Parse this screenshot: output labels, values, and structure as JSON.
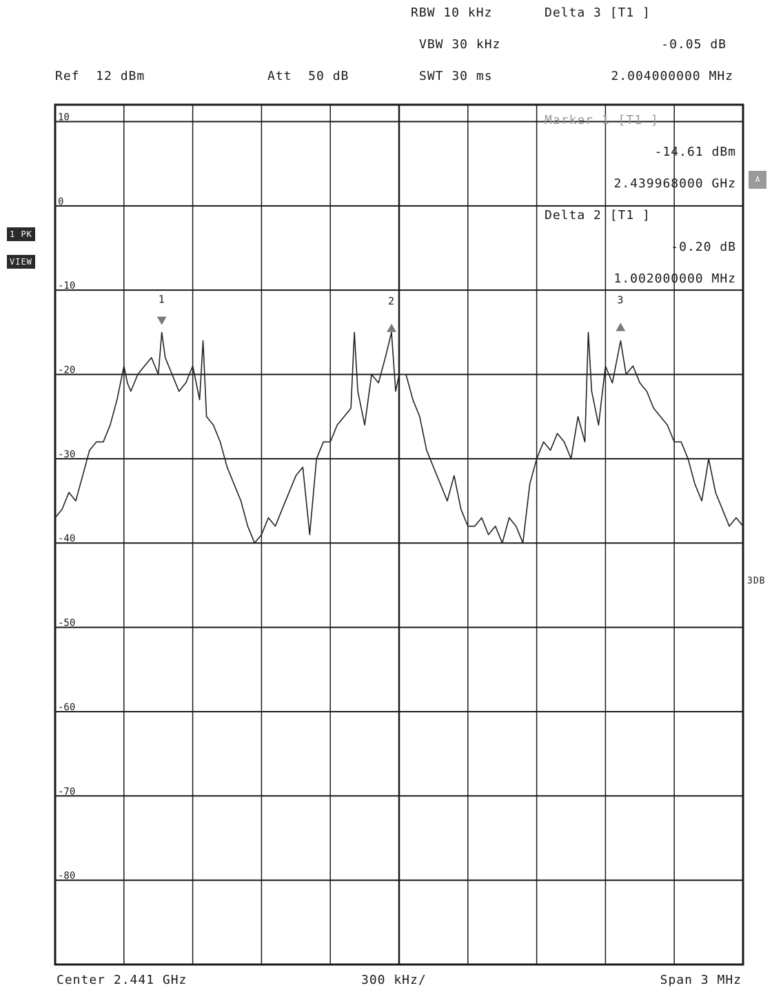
{
  "header": {
    "rbw": "RBW 10 kHz",
    "vbw": "VBW 30 kHz",
    "swt": "SWT 30 ms",
    "ref": "Ref  12 dBm",
    "att": "Att  50 dB",
    "delta3_title": "Delta 3 [T1 ]",
    "delta3_value": "-0.05 dB",
    "delta3_freq": "2.004000000 MHz"
  },
  "marker_info": {
    "marker1_title": "Marker 1 [T1 ]",
    "marker1_value": "-14.61 dBm",
    "marker1_freq": "2.439968000 GHz",
    "delta2_title": "Delta 2 [T1 ]",
    "delta2_value": "-0.20 dB",
    "delta2_freq": "1.002000000 MHz"
  },
  "side": {
    "trace_label": "1 PK",
    "trace_mode": "VIEW",
    "a_label": "A",
    "right_label": "3DB"
  },
  "footer": {
    "center": "Center 2.441 GHz",
    "per_div": "300 kHz/",
    "span": "Span 3 MHz"
  },
  "colors": {
    "trace": "#222222",
    "grid": "#1a1a1a",
    "marker": "#7a7a7a",
    "background": "#ffffff"
  },
  "chart_data": {
    "type": "line",
    "xlabel": "",
    "ylabel": "",
    "ylim": [
      -90,
      10
    ],
    "xlim": [
      0,
      10
    ],
    "y_ticks": [
      10,
      0,
      -10,
      -20,
      -30,
      -40,
      -50,
      -60,
      -70,
      -80
    ],
    "y_tick_labels": [
      "10",
      "0",
      "-10",
      "-20",
      "-30",
      "-40",
      "-50",
      "-60",
      "-70",
      "-80"
    ],
    "grid": true,
    "markers": [
      {
        "label": "1",
        "x": 1.55,
        "y": -14.61,
        "direction": "down"
      },
      {
        "label": "2",
        "x": 4.89,
        "y": -14.8,
        "direction": "up"
      },
      {
        "label": "3",
        "x": 8.22,
        "y": -14.7,
        "direction": "up"
      }
    ],
    "series": [
      {
        "x": [
          0,
          0.1,
          0.2,
          0.3,
          0.4,
          0.5,
          0.6,
          0.7,
          0.8,
          0.9,
          1.0,
          1.05,
          1.1,
          1.2,
          1.3,
          1.4,
          1.5,
          1.55,
          1.6,
          1.7,
          1.8,
          1.9,
          2.0,
          2.1,
          2.15,
          2.2,
          2.3,
          2.4,
          2.5,
          2.6,
          2.7,
          2.8,
          2.9,
          3.0,
          3.1,
          3.2,
          3.3,
          3.4,
          3.5,
          3.6,
          3.7,
          3.8,
          3.9,
          4.0,
          4.1,
          4.2,
          4.3,
          4.35,
          4.4,
          4.5,
          4.6,
          4.7,
          4.8,
          4.89,
          4.95,
          5.0,
          5.1,
          5.2,
          5.3,
          5.4,
          5.5,
          5.6,
          5.7,
          5.8,
          5.9,
          6.0,
          6.1,
          6.2,
          6.3,
          6.4,
          6.5,
          6.6,
          6.7,
          6.8,
          6.9,
          7.0,
          7.1,
          7.2,
          7.3,
          7.4,
          7.5,
          7.6,
          7.7,
          7.75,
          7.8,
          7.9,
          8.0,
          8.1,
          8.22,
          8.3,
          8.4,
          8.5,
          8.6,
          8.7,
          8.8,
          8.9,
          9.0,
          9.1,
          9.2,
          9.3,
          9.4,
          9.5,
          9.6,
          9.7,
          9.8,
          9.9,
          10.0
        ],
        "y": [
          -37,
          -36,
          -34,
          -35,
          -32,
          -29,
          -28,
          -28,
          -26,
          -23,
          -19,
          -21,
          -22,
          -20,
          -19,
          -18,
          -20,
          -15,
          -18,
          -20,
          -22,
          -21,
          -19,
          -23,
          -16,
          -25,
          -26,
          -28,
          -31,
          -33,
          -35,
          -38,
          -40,
          -39,
          -37,
          -38,
          -36,
          -34,
          -32,
          -31,
          -39,
          -30,
          -28,
          -28,
          -26,
          -25,
          -24,
          -15,
          -22,
          -26,
          -20,
          -21,
          -18,
          -15,
          -22,
          -20,
          -20,
          -23,
          -25,
          -29,
          -31,
          -33,
          -35,
          -32,
          -36,
          -38,
          -38,
          -37,
          -39,
          -38,
          -40,
          -37,
          -38,
          -40,
          -33,
          -30,
          -28,
          -29,
          -27,
          -28,
          -30,
          -25,
          -28,
          -15,
          -22,
          -26,
          -19,
          -21,
          -16,
          -20,
          -19,
          -21,
          -22,
          -24,
          -25,
          -26,
          -28,
          -28,
          -30,
          -33,
          -35,
          -30,
          -34,
          -36,
          -38,
          -37,
          -38
        ]
      }
    ]
  }
}
